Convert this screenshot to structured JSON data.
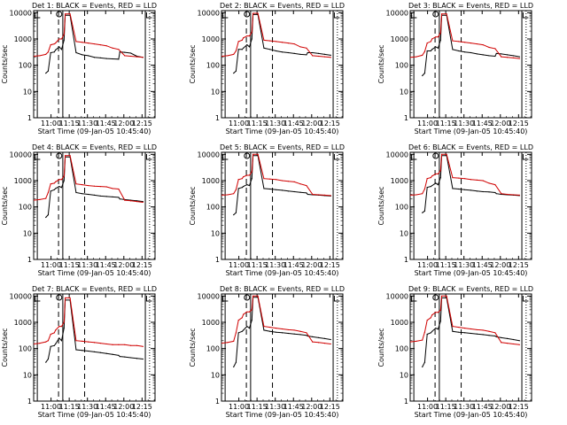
{
  "ylabel": "Counts/sec",
  "xlabel": "Start Time (09-Jan-05 10:45:40)",
  "x_ticks": [
    "11:00",
    "11:15",
    "11:30",
    "11:45",
    "12:00",
    "12:15"
  ],
  "y_ticks": [
    "1",
    "10",
    "100",
    "1000",
    "10000"
  ],
  "colors": {
    "events": "#000000",
    "lld": "#d00000",
    "axes": "#000000"
  },
  "chart_data": [
    {
      "type": "line",
      "title": "Det 1: BLACK = Events, RED = LLD",
      "xlabel": "Start Time (09-Jan-05 10:45:40)",
      "ylabel": "Counts/sec",
      "y_scale": "log",
      "ylim": [
        1,
        12000
      ],
      "xlim_minutes_after_10:45:40": [
        0,
        100
      ],
      "series": [
        {
          "name": "Events",
          "color": "#000000",
          "x": [
            10,
            12,
            14,
            17,
            18,
            21,
            23,
            25,
            26,
            30,
            35,
            40,
            45,
            50,
            55,
            60,
            65,
            70,
            71,
            75,
            80,
            85,
            90
          ],
          "y": [
            50,
            60,
            300,
            320,
            380,
            500,
            400,
            900,
            8000,
            8000,
            300,
            250,
            230,
            200,
            190,
            180,
            175,
            170,
            320,
            310,
            290,
            220,
            200
          ]
        },
        {
          "name": "LLD",
          "color": "#d00000",
          "x": [
            0,
            5,
            10,
            12,
            14,
            17,
            18,
            21,
            23,
            25,
            26,
            30,
            35,
            40,
            45,
            50,
            55,
            60,
            65,
            70,
            75,
            80,
            85,
            90
          ],
          "y": [
            220,
            230,
            260,
            320,
            600,
            650,
            700,
            1000,
            1000,
            1500,
            9000,
            9000,
            800,
            750,
            700,
            650,
            600,
            550,
            450,
            400,
            230,
            220,
            210,
            200
          ]
        }
      ]
    },
    {
      "type": "line",
      "title": "Det 2: BLACK = Events, RED = LLD",
      "xlabel": "Start Time (09-Jan-05 10:45:40)",
      "ylabel": "Counts/sec",
      "y_scale": "log",
      "ylim": [
        1,
        12000
      ],
      "xlim_minutes_after_10:45:40": [
        0,
        100
      ],
      "series": [
        {
          "name": "Events",
          "color": "#000000",
          "x": [
            10,
            12,
            14,
            17,
            18,
            21,
            23,
            25,
            26,
            30,
            35,
            40,
            45,
            50,
            55,
            60,
            65,
            70,
            71,
            75,
            80,
            85,
            90
          ],
          "y": [
            50,
            60,
            400,
            400,
            450,
            600,
            500,
            1000,
            8500,
            8500,
            450,
            400,
            350,
            320,
            300,
            280,
            260,
            250,
            300,
            300,
            280,
            260,
            240
          ]
        },
        {
          "name": "LLD",
          "color": "#d00000",
          "x": [
            0,
            5,
            10,
            12,
            14,
            17,
            18,
            21,
            23,
            25,
            26,
            30,
            35,
            40,
            45,
            50,
            55,
            60,
            65,
            70,
            75,
            80,
            85,
            90
          ],
          "y": [
            220,
            230,
            260,
            350,
            800,
            900,
            1100,
            1300,
            1300,
            1800,
            9500,
            9500,
            900,
            850,
            800,
            750,
            700,
            650,
            500,
            450,
            230,
            220,
            210,
            200
          ]
        }
      ]
    },
    {
      "type": "line",
      "title": "Det 3: BLACK = Events, RED = LLD",
      "xlabel": "Start Time (09-Jan-05 10:45:40)",
      "ylabel": "Counts/sec",
      "y_scale": "log",
      "ylim": [
        1,
        12000
      ],
      "xlim_minutes_after_10:45:40": [
        0,
        100
      ],
      "series": [
        {
          "name": "Events",
          "color": "#000000",
          "x": [
            10,
            12,
            14,
            17,
            18,
            21,
            23,
            25,
            26,
            30,
            35,
            40,
            45,
            50,
            55,
            60,
            65,
            70,
            71,
            75,
            80,
            85,
            90
          ],
          "y": [
            40,
            50,
            350,
            350,
            400,
            500,
            450,
            900,
            8000,
            8000,
            400,
            350,
            320,
            300,
            270,
            250,
            230,
            220,
            280,
            270,
            250,
            230,
            210
          ]
        },
        {
          "name": "LLD",
          "color": "#d00000",
          "x": [
            0,
            5,
            10,
            12,
            14,
            17,
            18,
            21,
            23,
            25,
            26,
            30,
            35,
            40,
            45,
            50,
            55,
            60,
            65,
            70,
            75,
            80,
            85,
            90
          ],
          "y": [
            200,
            210,
            240,
            330,
            700,
            800,
            1000,
            1200,
            1200,
            1700,
            9000,
            9000,
            850,
            800,
            750,
            700,
            650,
            600,
            480,
            430,
            210,
            200,
            190,
            180
          ]
        }
      ]
    },
    {
      "type": "line",
      "title": "Det 4: BLACK = Events, RED = LLD",
      "xlabel": "Start Time (09-Jan-05 10:45:40)",
      "ylabel": "Counts/sec",
      "y_scale": "log",
      "ylim": [
        1,
        12000
      ],
      "xlim_minutes_after_10:45:40": [
        0,
        100
      ],
      "series": [
        {
          "name": "Events",
          "color": "#000000",
          "x": [
            10,
            12,
            14,
            17,
            18,
            21,
            23,
            25,
            26,
            30,
            35,
            40,
            45,
            50,
            55,
            60,
            65,
            70,
            71,
            75,
            80,
            85,
            90
          ],
          "y": [
            40,
            50,
            400,
            450,
            500,
            600,
            550,
            1000,
            8000,
            8000,
            350,
            320,
            300,
            280,
            260,
            250,
            240,
            230,
            200,
            190,
            180,
            170,
            160
          ]
        },
        {
          "name": "LLD",
          "color": "#d00000",
          "x": [
            0,
            5,
            10,
            12,
            14,
            17,
            18,
            21,
            23,
            25,
            26,
            30,
            35,
            40,
            45,
            50,
            55,
            60,
            65,
            70,
            75,
            80,
            85,
            90
          ],
          "y": [
            180,
            190,
            210,
            350,
            750,
            800,
            900,
            1100,
            1100,
            1500,
            9000,
            9000,
            750,
            700,
            650,
            620,
            600,
            580,
            500,
            480,
            180,
            170,
            160,
            150
          ]
        }
      ]
    },
    {
      "type": "line",
      "title": "Det 5: BLACK = Events, RED = LLD",
      "xlabel": "Start Time (09-Jan-05 10:45:40)",
      "ylabel": "Counts/sec",
      "y_scale": "log",
      "ylim": [
        1,
        12000
      ],
      "xlim_minutes_after_10:45:40": [
        0,
        100
      ],
      "series": [
        {
          "name": "Events",
          "color": "#000000",
          "x": [
            10,
            12,
            14,
            17,
            18,
            21,
            23,
            25,
            26,
            30,
            35,
            40,
            45,
            50,
            55,
            60,
            65,
            70,
            71,
            75,
            80,
            85,
            90
          ],
          "y": [
            50,
            60,
            500,
            550,
            600,
            700,
            650,
            1200,
            9000,
            9000,
            500,
            480,
            450,
            430,
            400,
            380,
            360,
            340,
            300,
            290,
            280,
            270,
            260
          ]
        },
        {
          "name": "LLD",
          "color": "#d00000",
          "x": [
            0,
            5,
            10,
            12,
            14,
            17,
            18,
            21,
            23,
            25,
            26,
            30,
            35,
            40,
            45,
            50,
            55,
            60,
            65,
            70,
            75,
            80,
            85,
            90
          ],
          "y": [
            280,
            290,
            320,
            450,
            1100,
            1200,
            1400,
            1600,
            1600,
            2200,
            10000,
            10000,
            1200,
            1150,
            1100,
            1000,
            950,
            900,
            750,
            650,
            300,
            290,
            280,
            270
          ]
        }
      ]
    },
    {
      "type": "line",
      "title": "Det 6: BLACK = Events, RED = LLD",
      "xlabel": "Start Time (09-Jan-05 10:45:40)",
      "ylabel": "Counts/sec",
      "y_scale": "log",
      "ylim": [
        1,
        12000
      ],
      "xlim_minutes_after_10:45:40": [
        0,
        100
      ],
      "series": [
        {
          "name": "Events",
          "color": "#000000",
          "x": [
            10,
            12,
            14,
            17,
            18,
            21,
            23,
            25,
            26,
            30,
            35,
            40,
            45,
            50,
            55,
            60,
            65,
            70,
            71,
            75,
            80,
            85,
            90
          ],
          "y": [
            60,
            70,
            550,
            600,
            650,
            800,
            700,
            1300,
            9000,
            9000,
            500,
            480,
            450,
            430,
            400,
            380,
            370,
            350,
            320,
            300,
            290,
            280,
            270
          ]
        },
        {
          "name": "LLD",
          "color": "#d00000",
          "x": [
            0,
            5,
            10,
            12,
            14,
            17,
            18,
            21,
            23,
            25,
            26,
            30,
            35,
            40,
            45,
            50,
            55,
            60,
            65,
            70,
            75,
            80,
            85,
            90
          ],
          "y": [
            280,
            290,
            320,
            480,
            1200,
            1300,
            1500,
            1800,
            1800,
            2400,
            10000,
            10000,
            1300,
            1250,
            1200,
            1100,
            1050,
            1000,
            800,
            700,
            320,
            300,
            290,
            280
          ]
        }
      ]
    },
    {
      "type": "line",
      "title": "Det 7: BLACK = Events, RED = LLD",
      "xlabel": "Start Time (09-Jan-05 10:45:40)",
      "ylabel": "Counts/sec",
      "y_scale": "log",
      "ylim": [
        1,
        12000
      ],
      "xlim_minutes_after_10:45:40": [
        0,
        100
      ],
      "series": [
        {
          "name": "Events",
          "color": "#000000",
          "x": [
            10,
            12,
            14,
            17,
            18,
            21,
            23,
            25,
            26,
            30,
            35,
            40,
            45,
            50,
            55,
            60,
            65,
            70,
            71,
            75,
            80,
            85,
            90
          ],
          "y": [
            30,
            40,
            120,
            130,
            150,
            250,
            200,
            600,
            7000,
            7000,
            90,
            85,
            80,
            75,
            70,
            65,
            60,
            55,
            50,
            48,
            45,
            42,
            40
          ]
        },
        {
          "name": "LLD",
          "color": "#d00000",
          "x": [
            0,
            5,
            10,
            12,
            14,
            17,
            18,
            21,
            23,
            25,
            26,
            30,
            35,
            40,
            45,
            50,
            55,
            60,
            65,
            70,
            75,
            80,
            85,
            90
          ],
          "y": [
            150,
            160,
            180,
            200,
            350,
            400,
            500,
            700,
            700,
            1000,
            8500,
            8500,
            200,
            190,
            180,
            170,
            160,
            150,
            140,
            140,
            140,
            130,
            130,
            120
          ]
        }
      ]
    },
    {
      "type": "line",
      "title": "Det 8: BLACK = Events, RED = LLD",
      "xlabel": "Start Time (09-Jan-05 10:45:40)",
      "ylabel": "Counts/sec",
      "y_scale": "log",
      "ylim": [
        1,
        12000
      ],
      "xlim_minutes_after_10:45:40": [
        0,
        100
      ],
      "series": [
        {
          "name": "Events",
          "color": "#000000",
          "x": [
            10,
            12,
            14,
            17,
            18,
            21,
            23,
            25,
            26,
            30,
            35,
            40,
            45,
            50,
            55,
            60,
            65,
            70,
            71,
            75,
            80,
            85,
            90
          ],
          "y": [
            20,
            30,
            400,
            450,
            500,
            700,
            600,
            1200,
            9000,
            9000,
            500,
            450,
            420,
            400,
            380,
            360,
            340,
            320,
            300,
            280,
            260,
            240,
            220
          ]
        },
        {
          "name": "LLD",
          "color": "#d00000",
          "x": [
            0,
            5,
            10,
            12,
            14,
            17,
            18,
            21,
            23,
            25,
            26,
            30,
            35,
            40,
            45,
            50,
            55,
            60,
            65,
            70,
            75,
            80,
            85,
            90
          ],
          "y": [
            160,
            170,
            190,
            400,
            1200,
            1500,
            2000,
            2500,
            2500,
            3000,
            10000,
            10000,
            700,
            650,
            600,
            560,
            520,
            500,
            450,
            400,
            180,
            170,
            160,
            150
          ]
        }
      ]
    },
    {
      "type": "line",
      "title": "Det 9: BLACK = Events, RED = LLD",
      "xlabel": "Start Time (09-Jan-05 10:45:40)",
      "ylabel": "Counts/sec",
      "y_scale": "log",
      "ylim": [
        1,
        12000
      ],
      "xlim_minutes_after_10:45:40": [
        0,
        100
      ],
      "series": [
        {
          "name": "Events",
          "color": "#000000",
          "x": [
            10,
            12,
            14,
            17,
            18,
            21,
            23,
            25,
            26,
            30,
            35,
            40,
            45,
            50,
            55,
            60,
            65,
            70,
            71,
            75,
            80,
            85,
            90
          ],
          "y": [
            20,
            30,
            350,
            400,
            450,
            600,
            550,
            1100,
            8500,
            8500,
            450,
            420,
            400,
            380,
            360,
            340,
            320,
            300,
            280,
            260,
            240,
            220,
            200
          ]
        },
        {
          "name": "LLD",
          "color": "#d00000",
          "x": [
            0,
            5,
            10,
            12,
            14,
            17,
            18,
            21,
            23,
            25,
            26,
            30,
            35,
            40,
            45,
            50,
            55,
            60,
            65,
            70,
            75,
            80,
            85,
            90
          ],
          "y": [
            180,
            190,
            210,
            420,
            1200,
            1500,
            1900,
            2400,
            2400,
            2900,
            10000,
            10000,
            700,
            650,
            600,
            560,
            520,
            500,
            450,
            400,
            170,
            160,
            150,
            140
          ]
        }
      ]
    }
  ]
}
